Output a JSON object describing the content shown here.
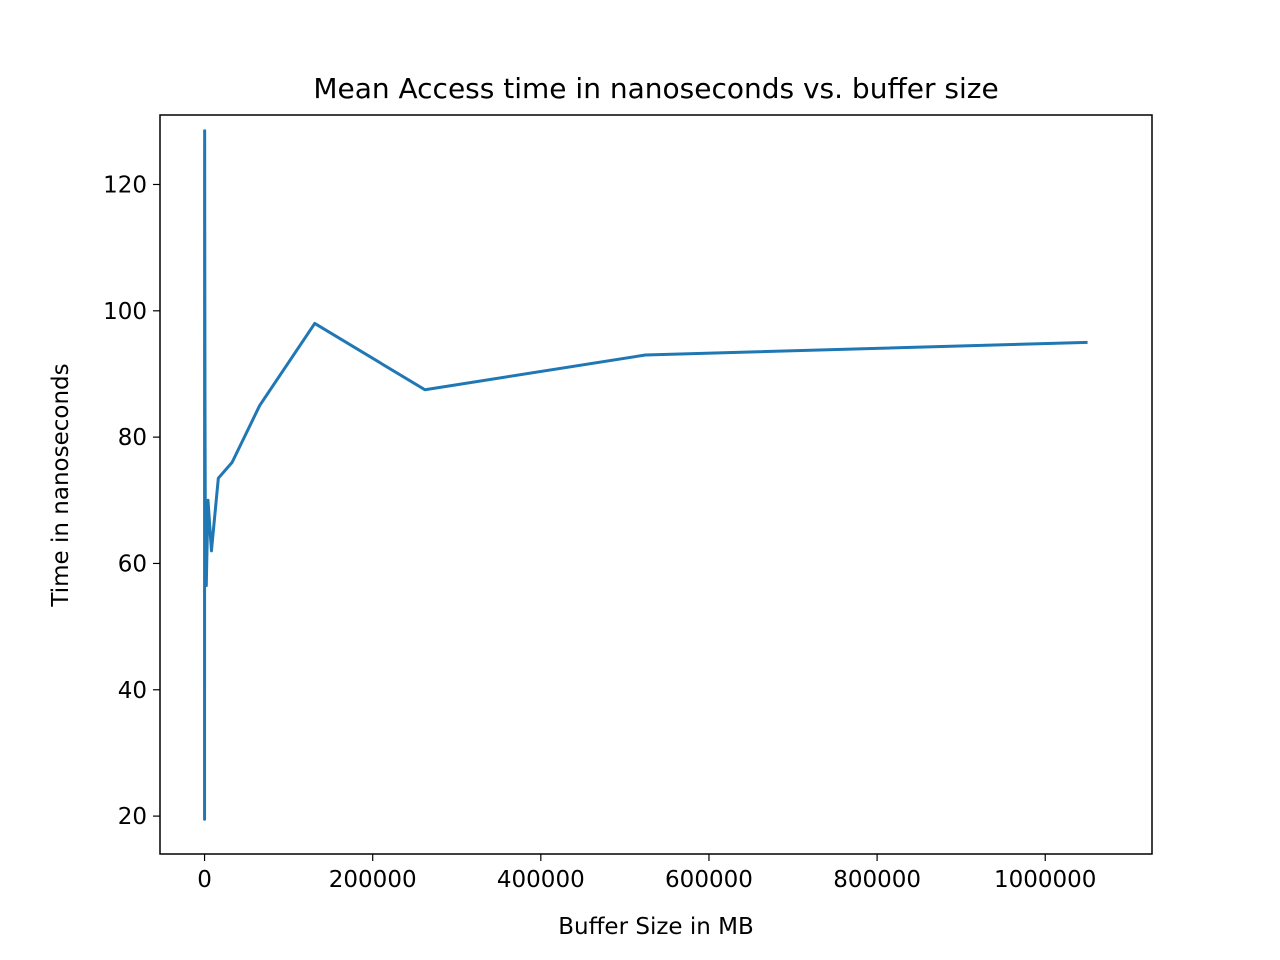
{
  "chart_data": {
    "type": "line",
    "title": "Mean Access time in nanoseconds vs. buffer size",
    "xlabel": "Buffer Size in MB",
    "ylabel": "Time in nanoseconds",
    "xlim": [
      -53000,
      1127000
    ],
    "ylim": [
      14,
      131
    ],
    "xticks": [
      0,
      200000,
      400000,
      600000,
      800000,
      1000000
    ],
    "xtick_labels": [
      "0",
      "200000",
      "400000",
      "600000",
      "800000",
      "1000000"
    ],
    "yticks": [
      20,
      40,
      60,
      80,
      100,
      120
    ],
    "ytick_labels": [
      "20",
      "40",
      "60",
      "80",
      "100",
      "120"
    ],
    "grid": false,
    "legend": "none",
    "line_color": "#1f77b4",
    "series": [
      {
        "x": [
          1,
          2,
          4,
          8,
          16,
          32,
          64,
          128,
          256,
          512,
          1024,
          2048,
          4096,
          8192,
          16384,
          32768,
          65536,
          131072,
          262144,
          524288,
          1048576
        ],
        "values": [
          55.5,
          19.5,
          22,
          35,
          55,
          40,
          120,
          128.5,
          110,
          85,
          60,
          56.5,
          70,
          62,
          73.5,
          76,
          85,
          98,
          87.5,
          93,
          95
        ]
      }
    ]
  }
}
